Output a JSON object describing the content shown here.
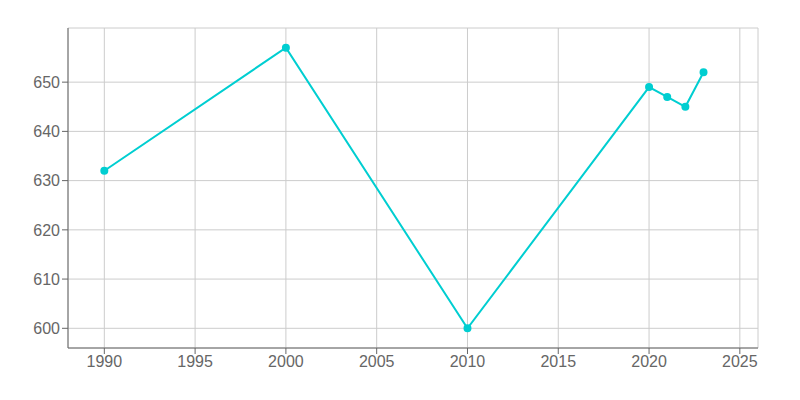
{
  "chart_data": {
    "type": "line",
    "x": [
      1990,
      2000,
      2010,
      2020,
      2021,
      2022,
      2023
    ],
    "values": [
      632,
      657,
      600,
      649,
      647,
      645,
      652
    ],
    "color": "#00CED1",
    "marker": "o",
    "xlim": [
      1988,
      2026
    ],
    "ylim": [
      596,
      661
    ],
    "xticks": [
      1990,
      1995,
      2000,
      2005,
      2010,
      2015,
      2020,
      2025
    ],
    "yticks": [
      600,
      610,
      620,
      630,
      640,
      650
    ],
    "grid": true
  }
}
